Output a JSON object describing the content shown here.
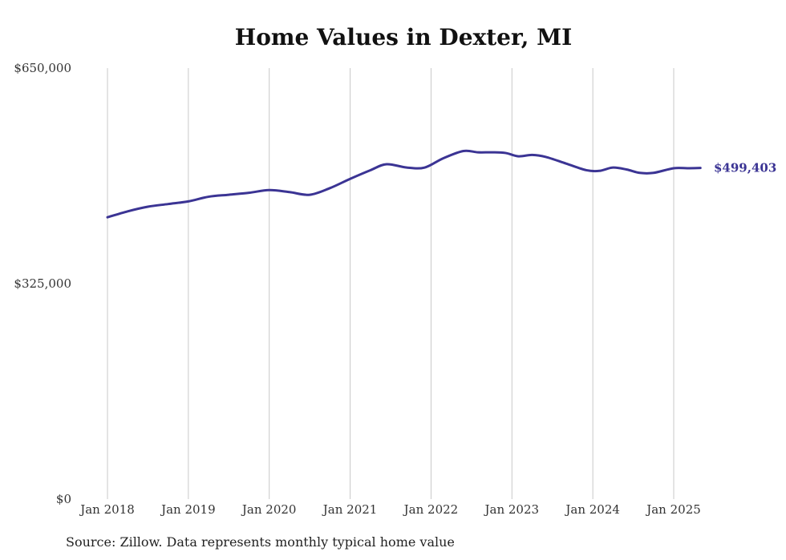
{
  "chart_data": {
    "type": "line",
    "title": "Home Values in Dexter, MI",
    "xlabel": "",
    "ylabel": "",
    "ylim": [
      0,
      650000
    ],
    "y_ticks": [
      {
        "value": 0,
        "label": "$0"
      },
      {
        "value": 325000,
        "label": "$325,000"
      },
      {
        "value": 650000,
        "label": "$650,000"
      }
    ],
    "x_ticks": [
      {
        "value": 2018.0,
        "label": "Jan 2018"
      },
      {
        "value": 2019.0,
        "label": "Jan 2019"
      },
      {
        "value": 2020.0,
        "label": "Jan 2020"
      },
      {
        "value": 2021.0,
        "label": "Jan 2021"
      },
      {
        "value": 2022.0,
        "label": "Jan 2022"
      },
      {
        "value": 2023.0,
        "label": "Jan 2023"
      },
      {
        "value": 2024.0,
        "label": "Jan 2024"
      },
      {
        "value": 2025.0,
        "label": "Jan 2025"
      }
    ],
    "xlim": [
      2017.0,
      2025.5
    ],
    "grid": {
      "vertical": true,
      "horizontal": false
    },
    "line_color": "#3b3494",
    "series": [
      {
        "x": [
          2018.0,
          2018.25,
          2018.5,
          2018.75,
          2019.0,
          2019.25,
          2019.5,
          2019.75,
          2020.0,
          2020.25,
          2020.5,
          2020.75,
          2021.0,
          2021.25,
          2021.45,
          2021.7,
          2021.92,
          2022.15,
          2022.4,
          2022.58,
          2022.75,
          2022.92,
          2023.08,
          2023.25,
          2023.42,
          2023.67,
          2023.92,
          2024.08,
          2024.25,
          2024.42,
          2024.58,
          2024.75,
          2025.0,
          2025.17,
          2025.33
        ],
        "y": [
          425000,
          434000,
          441000,
          445000,
          449000,
          456000,
          459000,
          462000,
          466000,
          463000,
          459000,
          469000,
          483000,
          496000,
          505000,
          500000,
          500000,
          514000,
          525000,
          523000,
          523000,
          522000,
          517000,
          519000,
          516000,
          506000,
          496000,
          495000,
          500000,
          497000,
          492000,
          492000,
          499000,
          499000,
          499403
        ]
      }
    ],
    "end_label": "$499,403"
  },
  "source": "Source: Zillow. Data represents monthly typical home value"
}
